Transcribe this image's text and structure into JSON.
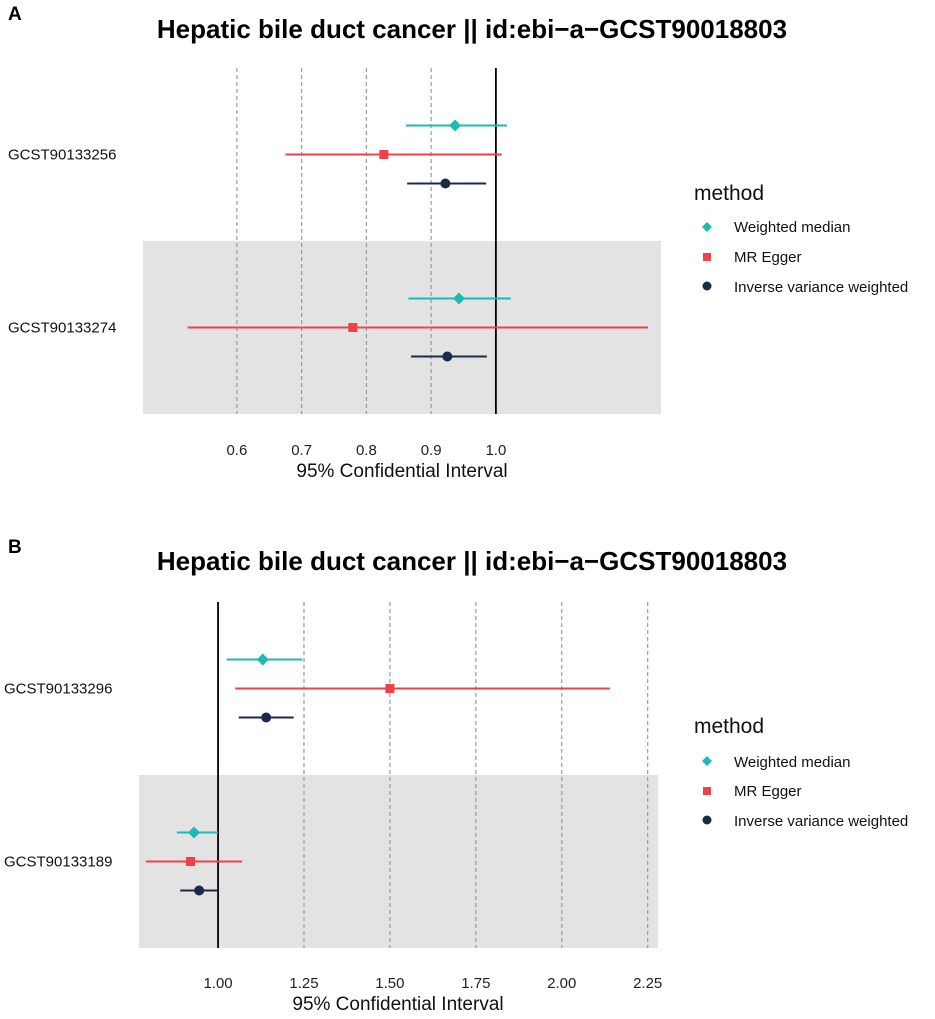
{
  "chart_data": [
    {
      "panel": "A",
      "type": "scatter",
      "title": "Hepatic bile duct cancer || id:ebi−a−GCST90018803",
      "xlabel": "95% Confidential Interval",
      "ylabel": "",
      "xlim": [
        0.455,
        1.255
      ],
      "xticks": [
        0.6,
        0.7,
        0.8,
        0.9,
        1.0
      ],
      "xtick_labels": [
        "0.6",
        "0.7",
        "0.8",
        "0.9",
        "1.0"
      ],
      "reference_line": 1.0,
      "grid": "dashed vertical",
      "categories": [
        "GCST90133256",
        "GCST90133274"
      ],
      "shaded_category": "GCST90133274",
      "legend": {
        "title": "method",
        "position": "right",
        "entries": [
          "Weighted median",
          "MR Egger",
          "Inverse variance weighted"
        ]
      },
      "series": [
        {
          "name": "Weighted median",
          "color": "#1DB9B4",
          "marker": "diamond",
          "points": [
            {
              "category": "GCST90133256",
              "estimate": 0.937,
              "lower": 0.861,
              "upper": 1.017
            },
            {
              "category": "GCST90133274",
              "estimate": 0.943,
              "lower": 0.865,
              "upper": 1.023
            }
          ]
        },
        {
          "name": "MR Egger",
          "color": "#F0414A",
          "marker": "square",
          "points": [
            {
              "category": "GCST90133256",
              "estimate": 0.827,
              "lower": 0.675,
              "upper": 1.009
            },
            {
              "category": "GCST90133274",
              "estimate": 0.779,
              "lower": 0.524,
              "upper": 1.235
            }
          ]
        },
        {
          "name": "Inverse variance weighted",
          "color": "#1B2A47",
          "marker": "circle",
          "points": [
            {
              "category": "GCST90133256",
              "estimate": 0.922,
              "lower": 0.863,
              "upper": 0.985
            },
            {
              "category": "GCST90133274",
              "estimate": 0.925,
              "lower": 0.869,
              "upper": 0.986
            }
          ]
        }
      ]
    },
    {
      "panel": "B",
      "type": "scatter",
      "title": "Hepatic bile duct cancer || id:ebi−a−GCST90018803",
      "xlabel": "95% Confidential Interval",
      "ylabel": "",
      "xlim": [
        0.77,
        2.28
      ],
      "xticks": [
        1.0,
        1.25,
        1.5,
        1.75,
        2.0,
        2.25
      ],
      "xtick_labels": [
        "1.00",
        "1.25",
        "1.50",
        "1.75",
        "2.00",
        "2.25"
      ],
      "reference_line": 1.0,
      "grid": "dashed vertical",
      "categories": [
        "GCST90133296",
        "GCST90133189"
      ],
      "shaded_category": "GCST90133189",
      "legend": {
        "title": "method",
        "position": "right",
        "entries": [
          "Weighted median",
          "MR Egger",
          "Inverse variance weighted"
        ]
      },
      "series": [
        {
          "name": "Weighted median",
          "color": "#1DB9B4",
          "marker": "diamond",
          "points": [
            {
              "category": "GCST90133296",
              "estimate": 1.13,
              "lower": 1.025,
              "upper": 1.245
            },
            {
              "category": "GCST90133189",
              "estimate": 0.93,
              "lower": 0.88,
              "upper": 1.0
            }
          ]
        },
        {
          "name": "MR Egger",
          "color": "#F0414A",
          "marker": "square",
          "points": [
            {
              "category": "GCST90133296",
              "estimate": 1.5,
              "lower": 1.05,
              "upper": 2.14
            },
            {
              "category": "GCST90133189",
              "estimate": 0.92,
              "lower": 0.79,
              "upper": 1.07
            }
          ]
        },
        {
          "name": "Inverse variance weighted",
          "color": "#1B2A47",
          "marker": "circle",
          "points": [
            {
              "category": "GCST90133296",
              "estimate": 1.14,
              "lower": 1.06,
              "upper": 1.22
            },
            {
              "category": "GCST90133189",
              "estimate": 0.945,
              "lower": 0.89,
              "upper": 1.0
            }
          ]
        }
      ]
    }
  ]
}
